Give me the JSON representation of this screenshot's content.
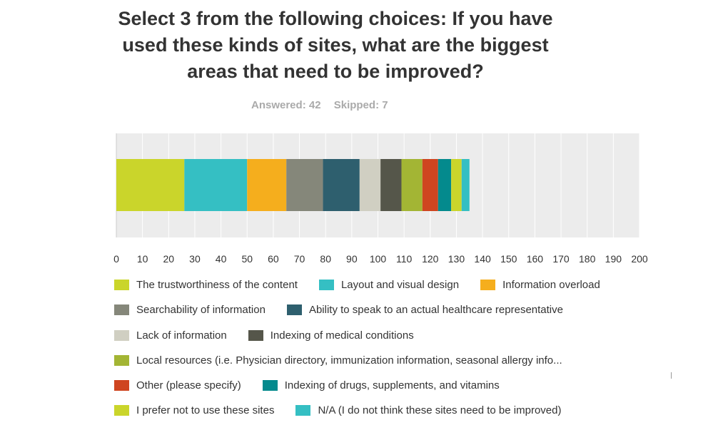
{
  "title": "Select 3 from the following choices: If you have used these kinds of sites, what are the biggest areas that need to be improved?",
  "answered": "Answered: 42",
  "skipped": "Skipped: 7",
  "chart_data": {
    "type": "bar",
    "orientation": "horizontal",
    "stacked": true,
    "xlim": [
      0,
      200
    ],
    "x_ticks": [
      "0",
      "10",
      "20",
      "30",
      "40",
      "50",
      "60",
      "70",
      "80",
      "90",
      "100",
      "110",
      "120",
      "130",
      "140",
      "150",
      "160",
      "170",
      "180",
      "190",
      "200"
    ],
    "grid": true,
    "legend_position": "bottom",
    "series": [
      {
        "name": "The trustworthiness of the content",
        "value": 26,
        "color": "#cad52b"
      },
      {
        "name": "Layout and visual design",
        "value": 24,
        "color": "#35bfc3"
      },
      {
        "name": "Information overload",
        "value": 15,
        "color": "#f5ae1d"
      },
      {
        "name": "Searchability of information",
        "value": 14,
        "color": "#85877a"
      },
      {
        "name": "Ability to speak to an actual healthcare representative",
        "value": 14,
        "color": "#2e5f6e"
      },
      {
        "name": "Lack of information",
        "value": 8,
        "color": "#d0cfc2"
      },
      {
        "name": "Indexing of medical conditions",
        "value": 8,
        "color": "#55564a"
      },
      {
        "name": "Local resources (i.e. Physician directory, immunization information, seasonal allergy info...",
        "value": 8,
        "color": "#a3b534"
      },
      {
        "name": "Other (please specify)",
        "value": 6,
        "color": "#cf4520"
      },
      {
        "name": "Indexing of drugs, supplements, and vitamins",
        "value": 5,
        "color": "#048a8d"
      },
      {
        "name": "I prefer not to use these sites",
        "value": 4,
        "color": "#cad52b"
      },
      {
        "name": "N/A (I do not think these sites need to be improved)",
        "value": 3,
        "color": "#35bfc3"
      }
    ]
  },
  "legend_rows": [
    [
      0,
      1,
      2
    ],
    [
      3,
      4
    ],
    [
      5,
      6
    ],
    [
      7
    ],
    [
      8,
      9
    ],
    [
      10,
      11
    ]
  ]
}
